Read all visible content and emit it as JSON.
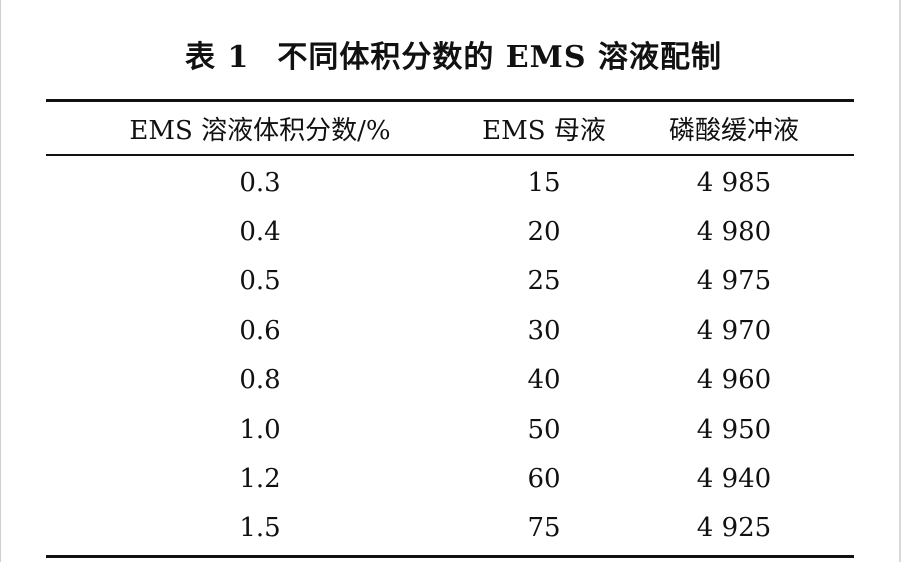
{
  "title": {
    "label": "表 1",
    "text": "不同体积分数的 EMS 溶液配制"
  },
  "table": {
    "headers": [
      "EMS 溶液体积分数/%",
      "EMS 母液",
      "磷酸缓冲液"
    ],
    "rows": [
      [
        "0.3",
        "15",
        "4 985"
      ],
      [
        "0.4",
        "20",
        "4 980"
      ],
      [
        "0.5",
        "25",
        "4 975"
      ],
      [
        "0.6",
        "30",
        "4 970"
      ],
      [
        "0.8",
        "40",
        "4 960"
      ],
      [
        "1.0",
        "50",
        "4 950"
      ],
      [
        "1.2",
        "60",
        "4 940"
      ],
      [
        "1.5",
        "75",
        "4 925"
      ]
    ]
  }
}
